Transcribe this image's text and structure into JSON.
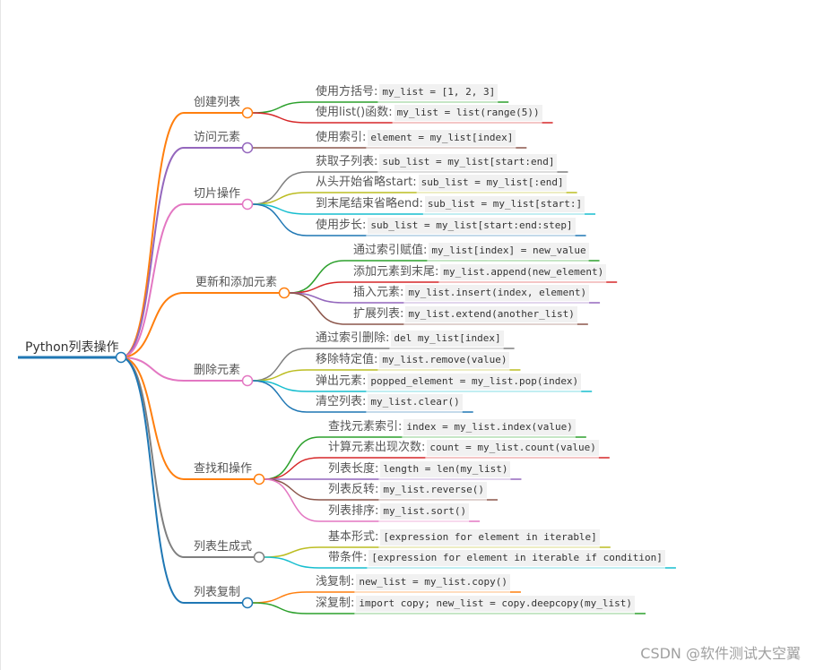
{
  "root": {
    "label": "Python列表操作",
    "color": "#1f77b4"
  },
  "branches": [
    {
      "label": "创建列表",
      "color": "#ff7f0e",
      "children": [
        {
          "label": "使用方括号:",
          "code": "my_list = [1, 2, 3]",
          "color": "#2ca02c"
        },
        {
          "label": "使用list()函数:",
          "code": "my_list = list(range(5))",
          "color": "#d62728"
        }
      ]
    },
    {
      "label": "访问元素",
      "color": "#9467bd",
      "children": [
        {
          "label": "使用索引:",
          "code": "element = my_list[index]",
          "color": "#8c564b"
        }
      ]
    },
    {
      "label": "切片操作",
      "color": "#e377c2",
      "children": [
        {
          "label": "获取子列表:",
          "code": "sub_list = my_list[start:end]",
          "color": "#7f7f7f"
        },
        {
          "label": "从头开始省略start:",
          "code": "sub_list = my_list[:end]",
          "color": "#bcbd22"
        },
        {
          "label": "到末尾结束省略end:",
          "code": "sub_list = my_list[start:]",
          "color": "#17becf"
        },
        {
          "label": "使用步长:",
          "code": "sub_list = my_list[start:end:step]",
          "color": "#1f77b4"
        }
      ]
    },
    {
      "label": "更新和添加元素",
      "color": "#ff7f0e",
      "children": [
        {
          "label": "通过索引赋值:",
          "code": "my_list[index] = new_value",
          "color": "#2ca02c"
        },
        {
          "label": "添加元素到末尾:",
          "code": "my_list.append(new_element)",
          "color": "#d62728"
        },
        {
          "label": "插入元素:",
          "code": "my_list.insert(index, element)",
          "color": "#9467bd"
        },
        {
          "label": "扩展列表:",
          "code": "my_list.extend(another_list)",
          "color": "#8c564b"
        }
      ]
    },
    {
      "label": "删除元素",
      "color": "#e377c2",
      "children": [
        {
          "label": "通过索引删除:",
          "code": "del my_list[index]",
          "color": "#7f7f7f"
        },
        {
          "label": "移除特定值:",
          "code": "my_list.remove(value)",
          "color": "#bcbd22"
        },
        {
          "label": "弹出元素:",
          "code": "popped_element = my_list.pop(index)",
          "color": "#17becf"
        },
        {
          "label": "清空列表:",
          "code": "my_list.clear()",
          "color": "#1f77b4"
        }
      ]
    },
    {
      "label": "查找和操作",
      "color": "#ff7f0e",
      "children": [
        {
          "label": "查找元素索引:",
          "code": "index = my_list.index(value)",
          "color": "#2ca02c"
        },
        {
          "label": "计算元素出现次数:",
          "code": "count = my_list.count(value)",
          "color": "#d62728"
        },
        {
          "label": "列表长度:",
          "code": "length = len(my_list)",
          "color": "#9467bd"
        },
        {
          "label": "列表反转:",
          "code": "my_list.reverse()",
          "color": "#8c564b"
        },
        {
          "label": "列表排序:",
          "code": "my_list.sort()",
          "color": "#e377c2"
        }
      ]
    },
    {
      "label": "列表生成式",
      "color": "#7f7f7f",
      "children": [
        {
          "label": "基本形式:",
          "code": "[expression for element in iterable]",
          "color": "#bcbd22"
        },
        {
          "label": "带条件:",
          "code": "[expression for element in iterable if condition]",
          "color": "#17becf"
        }
      ]
    },
    {
      "label": "列表复制",
      "color": "#1f77b4",
      "children": [
        {
          "label": "浅复制:",
          "code": "new_list = my_list.copy()",
          "color": "#ff7f0e"
        },
        {
          "label": "深复制:",
          "code": "import copy; new_list = copy.deepcopy(my_list)",
          "color": "#2ca02c"
        }
      ]
    }
  ],
  "watermark": "CSDN @软件测试大空翼"
}
